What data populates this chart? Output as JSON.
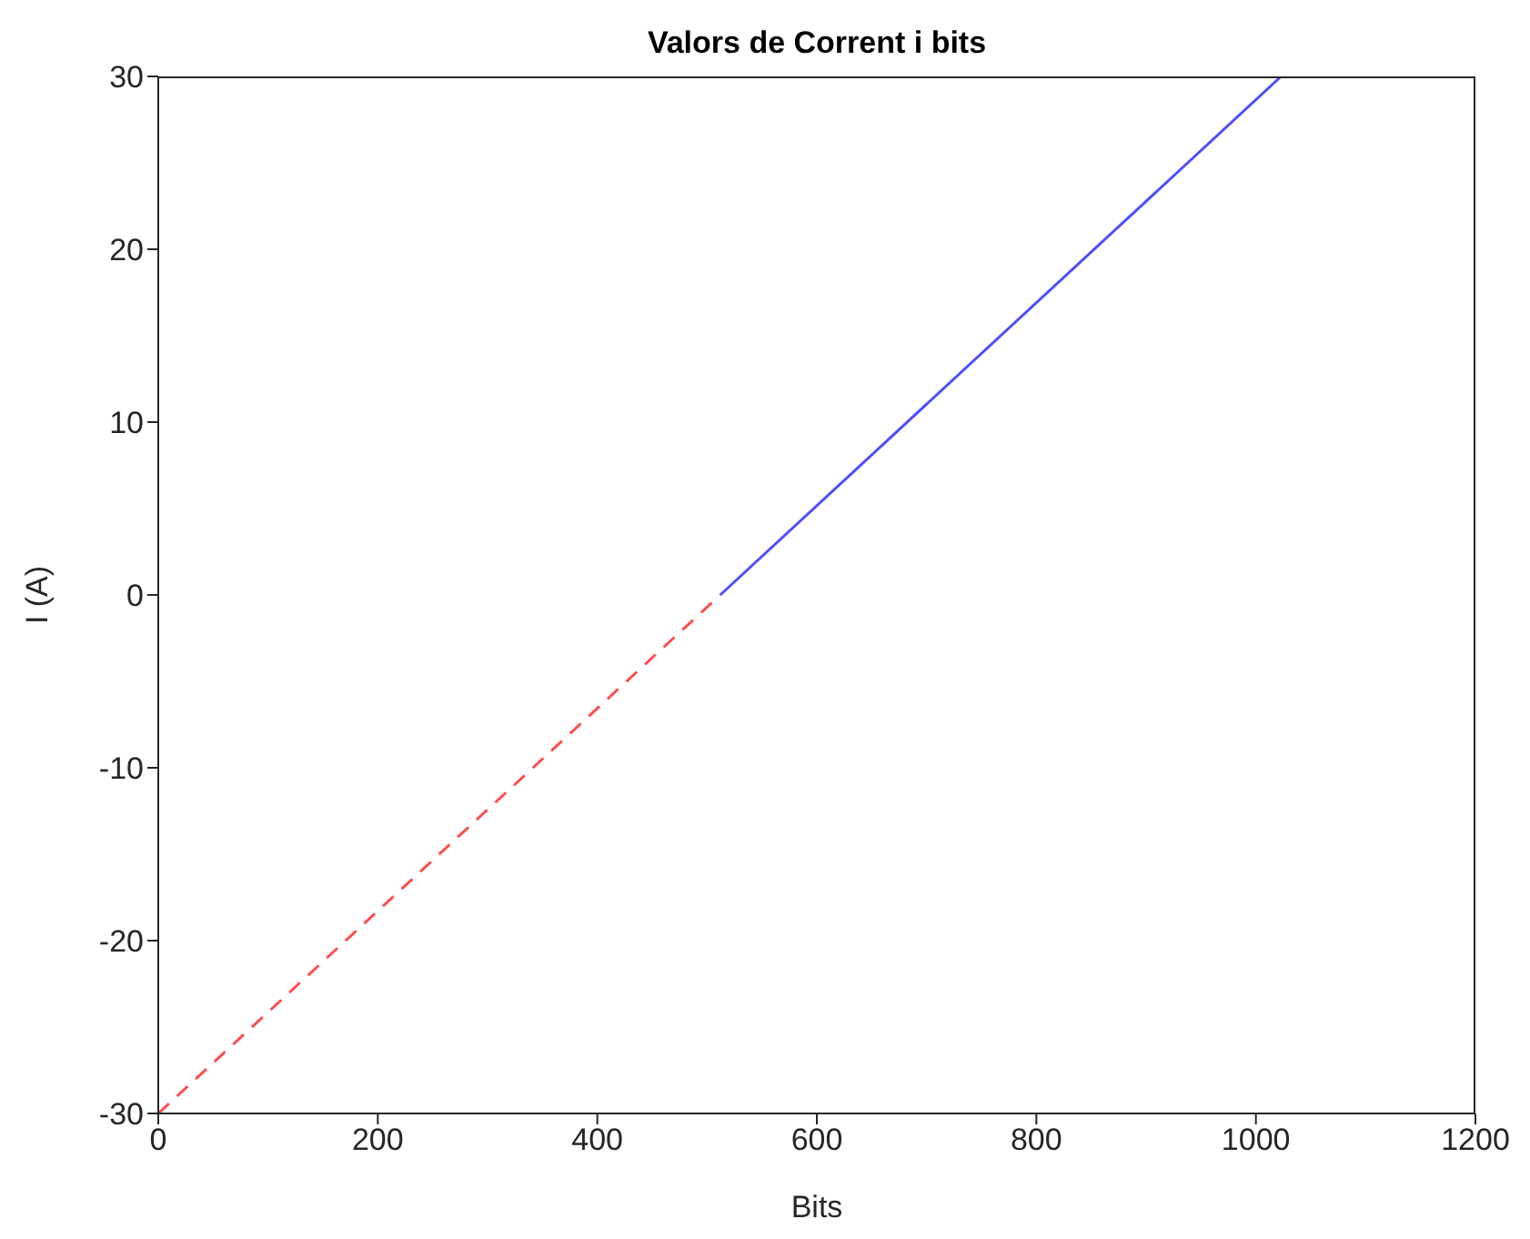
{
  "chart_data": {
    "type": "line",
    "title": "Valors de Corrent i bits",
    "xlabel": "Bits",
    "ylabel": "I (A)",
    "series": [
      {
        "x": [
          0,
          512
        ],
        "values": [
          -30,
          0
        ],
        "color": "#ff4d4d",
        "line_style": "dashed"
      },
      {
        "x": [
          512,
          1023
        ],
        "values": [
          0,
          30
        ],
        "color": "#4d4dff",
        "line_style": "solid"
      }
    ],
    "xlim": [
      0,
      1200
    ],
    "xticks": [
      0,
      200,
      400,
      600,
      800,
      1000,
      1200
    ],
    "ylim": [
      -30,
      30
    ],
    "yticks": [
      -30,
      -20,
      -10,
      0,
      10,
      20,
      30
    ],
    "grid": false,
    "legend": false,
    "marker": "none"
  }
}
